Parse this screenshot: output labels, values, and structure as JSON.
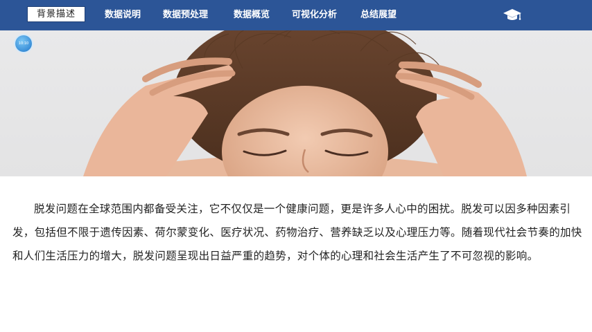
{
  "nav": {
    "active": "背景描述",
    "items": [
      "数据说明",
      "数据预处理",
      "数据概览",
      "可视化分析",
      "总结展望"
    ],
    "icon": "graduation-cap-icon"
  },
  "badge": {
    "time": "10:10"
  },
  "hero": {
    "image": "woman-holding-hair-photo"
  },
  "content": {
    "paragraph": "脱发问题在全球范围内都备受关注，它不仅仅是一个健康问题，更是许多人心中的困扰。脱发可以因多种因素引发，包括但不限于遗传因素、荷尔蒙变化、医疗状况、药物治疗、营养缺乏以及心理压力等。随着现代社会节奏的加快和人们生活压力的增大，脱发问题呈现出日益严重的趋势，对个体的心理和社会生活产生了不可忽视的影响。"
  },
  "colors": {
    "topbar": "#2c5597",
    "text": "#222222"
  }
}
